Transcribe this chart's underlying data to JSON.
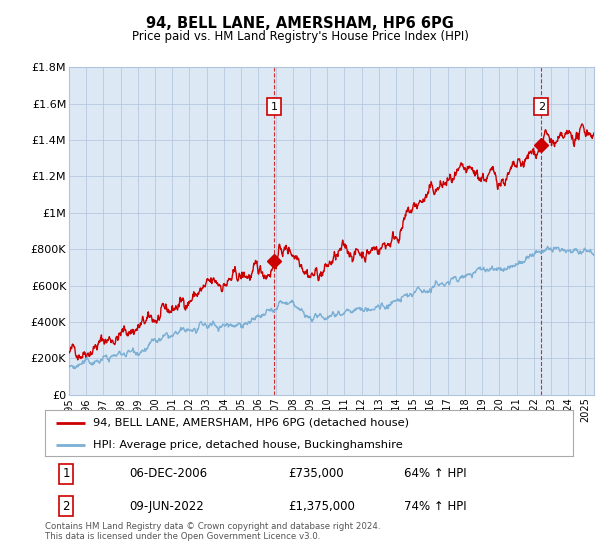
{
  "title": "94, BELL LANE, AMERSHAM, HP6 6PG",
  "subtitle": "Price paid vs. HM Land Registry's House Price Index (HPI)",
  "ylim": [
    0,
    1800000
  ],
  "yticks": [
    0,
    200000,
    400000,
    600000,
    800000,
    1000000,
    1200000,
    1400000,
    1600000,
    1800000
  ],
  "ytick_labels": [
    "£0",
    "£200K",
    "£400K",
    "£600K",
    "£800K",
    "£1M",
    "£1.2M",
    "£1.4M",
    "£1.6M",
    "£1.8M"
  ],
  "background_color": "#ffffff",
  "chart_bg_color": "#dde8f5",
  "grid_color": "#b0c4de",
  "sale1_date": 2006.92,
  "sale1_price": 735000,
  "sale2_date": 2022.44,
  "sale2_price": 1375000,
  "table_data": [
    [
      "1",
      "06-DEC-2006",
      "£735,000",
      "64% ↑ HPI"
    ],
    [
      "2",
      "09-JUN-2022",
      "£1,375,000",
      "74% ↑ HPI"
    ]
  ],
  "legend_line1": "94, BELL LANE, AMERSHAM, HP6 6PG (detached house)",
  "legend_line2": "HPI: Average price, detached house, Buckinghamshire",
  "footer": "Contains HM Land Registry data © Crown copyright and database right 2024.\nThis data is licensed under the Open Government Licence v3.0.",
  "line1_color": "#cc0000",
  "hpi_line_color": "#7bafd4",
  "vline_color": "#cc0000",
  "xmin": 1995.0,
  "xmax": 2025.5,
  "xticks": [
    1995,
    1996,
    1997,
    1998,
    1999,
    2000,
    2001,
    2002,
    2003,
    2004,
    2005,
    2006,
    2007,
    2008,
    2009,
    2010,
    2011,
    2012,
    2013,
    2014,
    2015,
    2016,
    2017,
    2018,
    2019,
    2020,
    2021,
    2022,
    2023,
    2024,
    2025
  ]
}
